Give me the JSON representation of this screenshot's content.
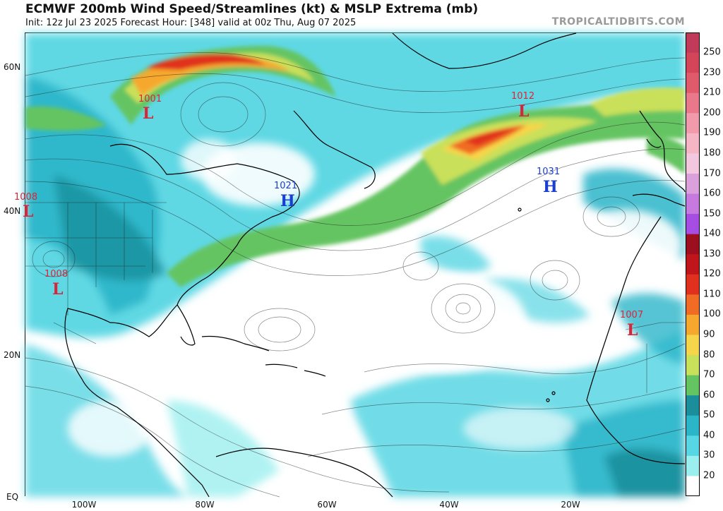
{
  "header": {
    "title": "ECMWF 200mb Wind Speed/Streamlines (kt) & MSLP Extrema (mb)",
    "subtitle": "Init: 12z Jul 23 2025   Forecast Hour: [348]   valid at 00z Thu, Aug 07 2025",
    "site": "TROPICALTIDBITS.COM"
  },
  "axes": {
    "lat_labels": [
      "60N",
      "40N",
      "20N",
      "EQ"
    ],
    "lon_labels": [
      "100W",
      "80W",
      "60W",
      "40W",
      "20W"
    ]
  },
  "colorbar": {
    "labels": [
      "250",
      "230",
      "210",
      "200",
      "190",
      "180",
      "170",
      "160",
      "150",
      "140",
      "130",
      "120",
      "110",
      "100",
      "90",
      "80",
      "70",
      "60",
      "50",
      "40",
      "30",
      "20"
    ],
    "colors": [
      "#c23a5a",
      "#d4455a",
      "#df5a6a",
      "#e8788a",
      "#f09aab",
      "#f5b5c5",
      "#f3c7dd",
      "#d9a0dc",
      "#c67ae0",
      "#a64de3",
      "#9b0f1f",
      "#c0151b",
      "#e0301e",
      "#f06c24",
      "#f6a82e",
      "#f7d54a",
      "#c9e05a",
      "#65c462",
      "#1a8f9b",
      "#2bb5c9",
      "#57d6e3",
      "#9cefef",
      "#ffffff"
    ]
  },
  "systems": [
    {
      "type": "L",
      "pressure": "1001",
      "color": "#d9253a"
    },
    {
      "type": "L",
      "pressure": "1012",
      "color": "#d9253a"
    },
    {
      "type": "L",
      "pressure": "1008",
      "color": "#d9253a"
    },
    {
      "type": "L",
      "pressure": "1008",
      "color": "#d9253a"
    },
    {
      "type": "L",
      "pressure": "1007",
      "color": "#d9253a"
    },
    {
      "type": "H",
      "pressure": "1021",
      "color": "#1a3ed1"
    },
    {
      "type": "H",
      "pressure": "1031",
      "color": "#1a3ed1"
    }
  ]
}
